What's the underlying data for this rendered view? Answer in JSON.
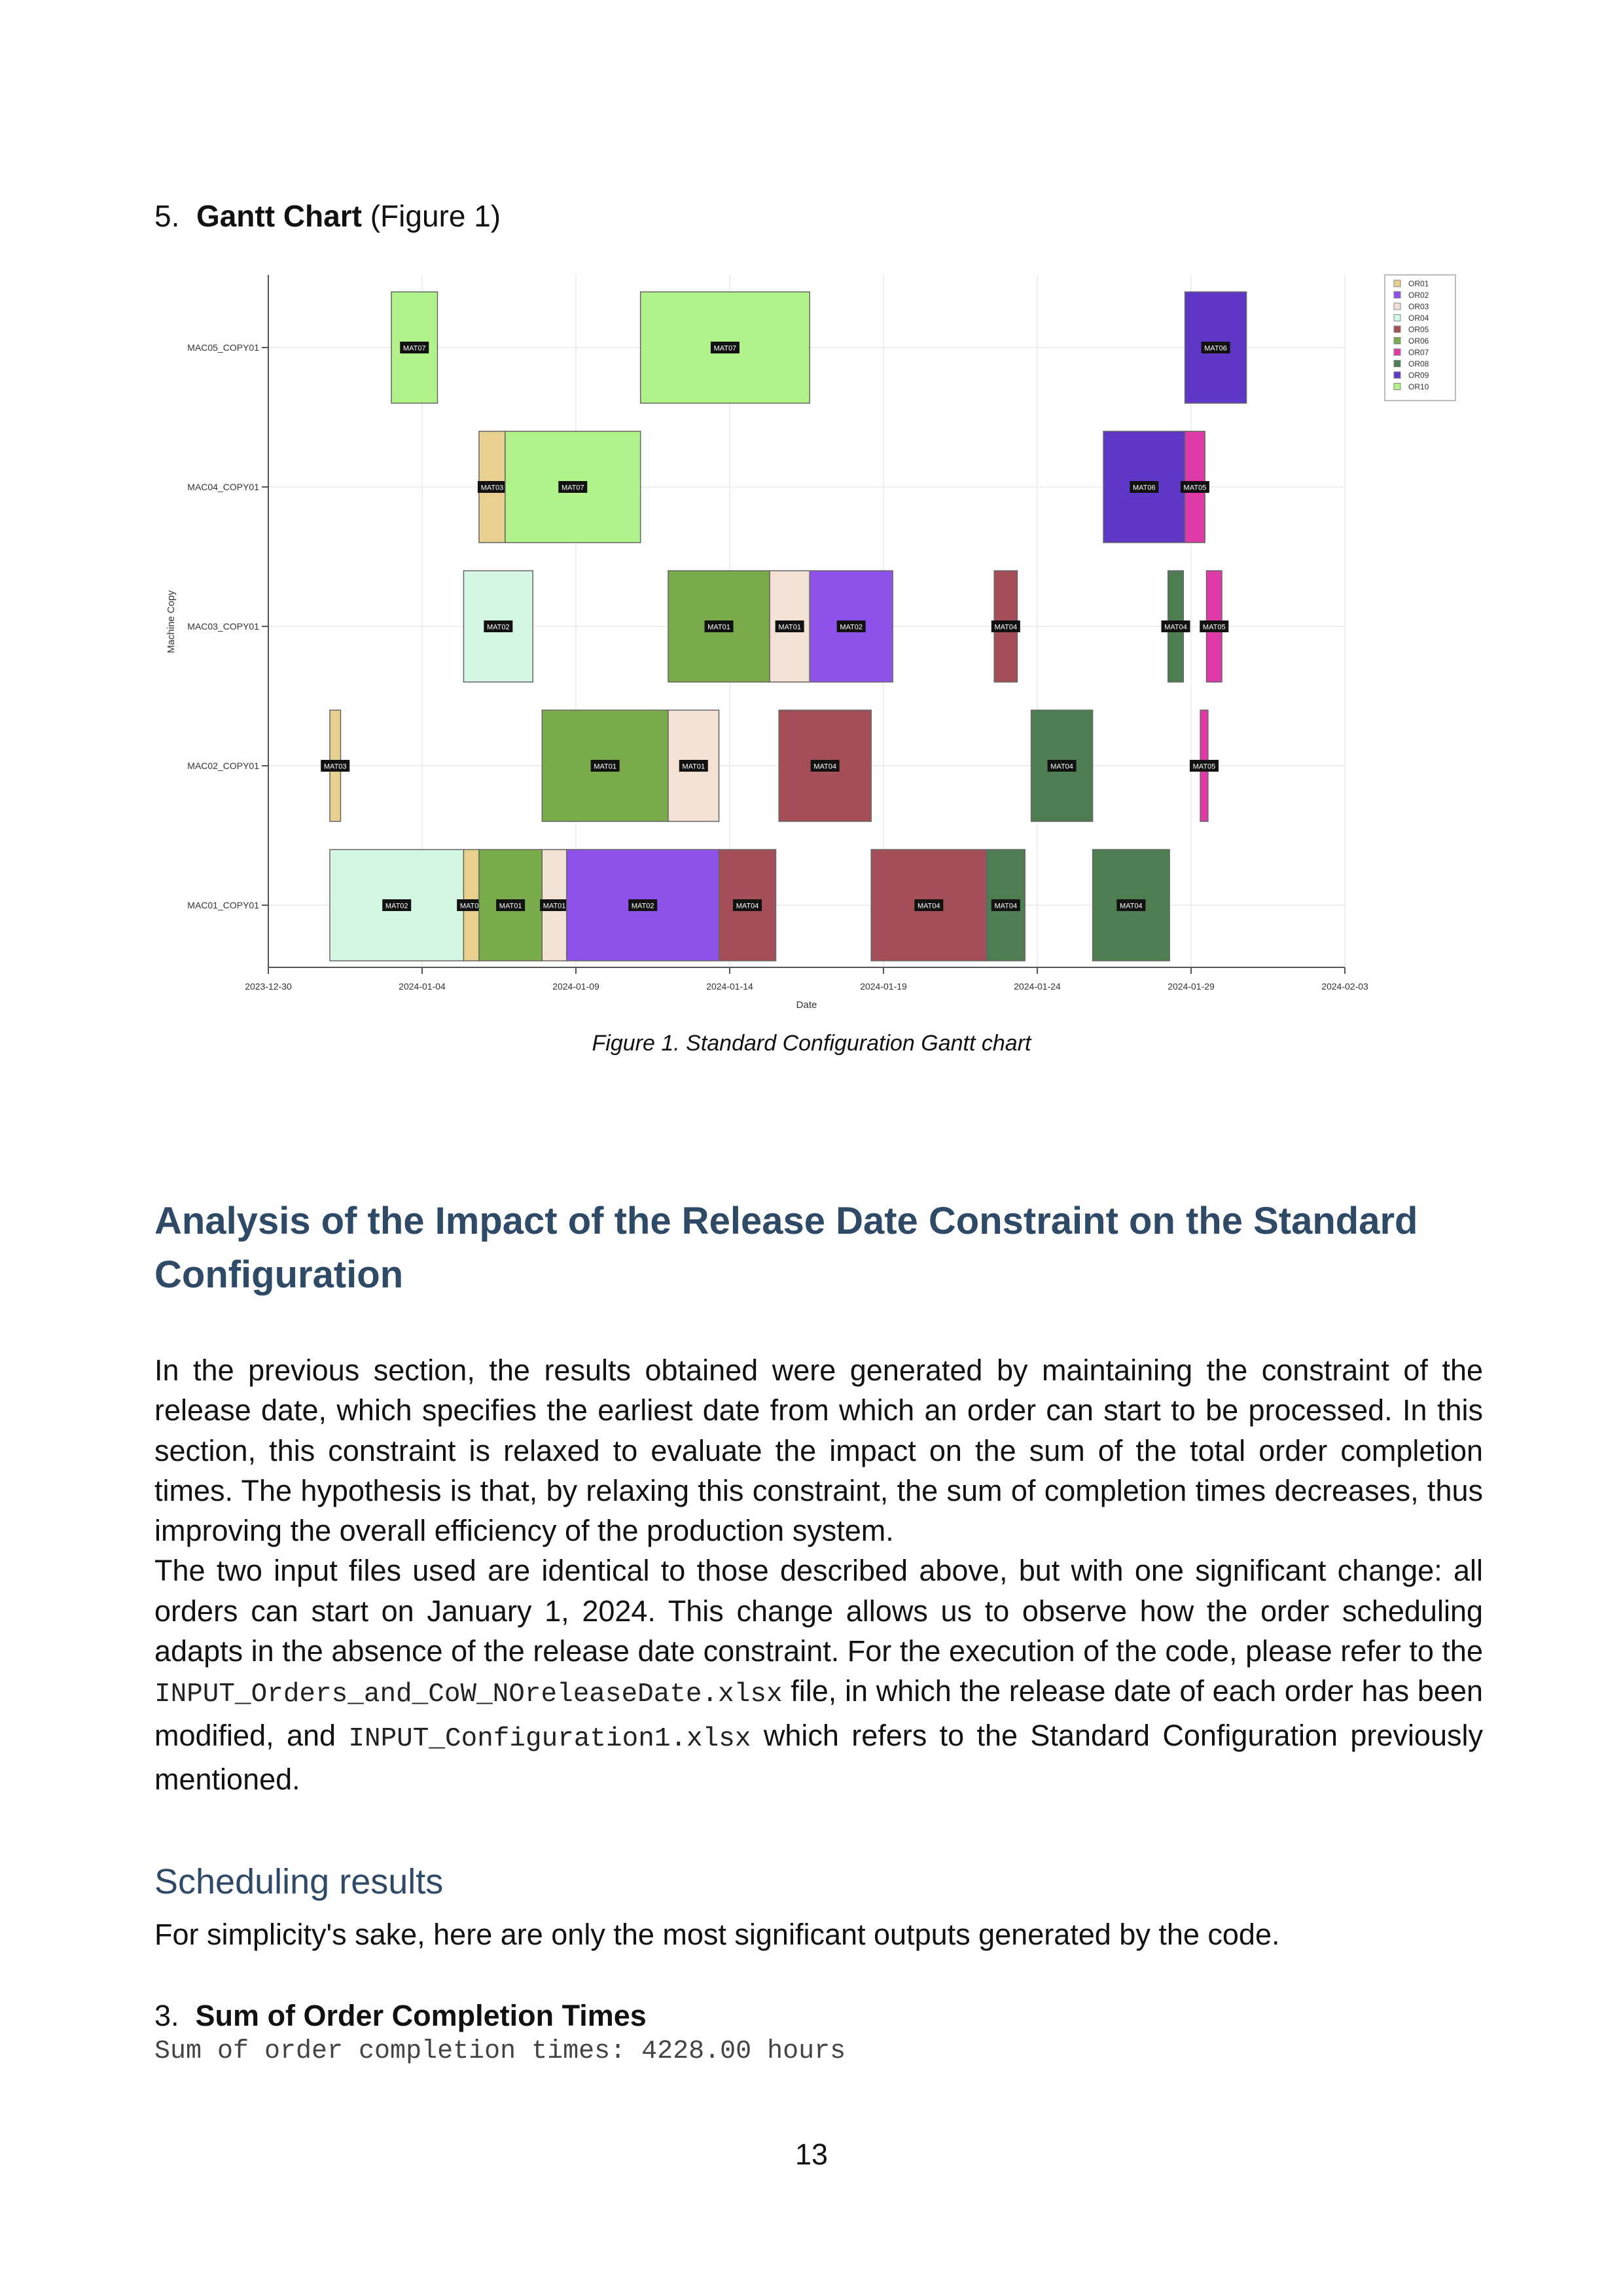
{
  "section5": {
    "number": "5.",
    "title": "Gantt Chart",
    "ref": "(Figure 1)"
  },
  "figure_caption": "Figure 1. Standard Configuration Gantt chart",
  "heading": "Analysis of the Impact of the Release Date Constraint on the Standard Configuration",
  "paragraph1": "In the previous section, the results obtained were generated by maintaining the constraint of the release date, which specifies the earliest date from which an order can start to be processed. In this section, this constraint is relaxed to evaluate the impact on the sum of the total order completion times. The hypothesis is that, by relaxing this constraint, the sum of completion times decreases, thus improving the overall efficiency of the production system.",
  "paragraph2": {
    "part1": "The two input files used are identical to those described above, but with one significant change: all orders can start on January 1, 2024. This change allows us to observe how the order scheduling adapts in the absence of the release date constraint. For the execution of the code, please refer to the ",
    "file1": "INPUT_Orders_and_CoW_NOreleaseDate.xlsx",
    "part2": " file, in which the release date of each order has been modified, and ",
    "file2": "INPUT_Configuration1.xlsx",
    "part3": " which refers to the Standard Configuration previously mentioned."
  },
  "subheading": "Scheduling results",
  "simplicity_text": "For simplicity's sake, here are only the most significant outputs generated by the code.",
  "section3": {
    "number": "3.",
    "title": "Sum of Order Completion Times"
  },
  "code_output": "Sum of order completion times: 4228.00 hours",
  "page_number": "13",
  "chart_data": {
    "type": "gantt",
    "xlabel": "Date",
    "ylabel": "Machine Copy",
    "x_range": [
      "2023-12-30",
      "2024-02-03"
    ],
    "x_ticks": [
      "2023-12-30",
      "2024-01-04",
      "2024-01-09",
      "2024-01-14",
      "2024-01-19",
      "2024-01-24",
      "2024-01-29",
      "2024-02-03"
    ],
    "machines": [
      "MAC01_COPY01",
      "MAC02_COPY01",
      "MAC03_COPY01",
      "MAC04_COPY01",
      "MAC05_COPY01"
    ],
    "legend_position": "top-right",
    "legend": [
      {
        "name": "OR01",
        "color": "#e8d08e"
      },
      {
        "name": "OR02",
        "color": "#8e52ea"
      },
      {
        "name": "OR03",
        "color": "#f3e1d4"
      },
      {
        "name": "OR04",
        "color": "#d4f7e3"
      },
      {
        "name": "OR05",
        "color": "#a44e58"
      },
      {
        "name": "OR06",
        "color": "#7aab4b"
      },
      {
        "name": "OR07",
        "color": "#e03aa8"
      },
      {
        "name": "OR08",
        "color": "#4f7d52"
      },
      {
        "name": "OR09",
        "color": "#6038c8"
      },
      {
        "name": "OR10",
        "color": "#b1f28b"
      }
    ],
    "tasks": [
      {
        "machine": "MAC05_COPY01",
        "start": 4,
        "end": 5.5,
        "label": "MAT07",
        "order": "OR10"
      },
      {
        "machine": "MAC05_COPY01",
        "start": 12.1,
        "end": 17.6,
        "label": "MAT07",
        "order": "OR10"
      },
      {
        "machine": "MAC05_COPY01",
        "start": 29.8,
        "end": 31.8,
        "label": "MAT06",
        "order": "OR09"
      },
      {
        "machine": "MAC04_COPY01",
        "start": 6.85,
        "end": 7.7,
        "label": "MAT03",
        "order": "OR01"
      },
      {
        "machine": "MAC04_COPY01",
        "start": 7.7,
        "end": 12.1,
        "label": "MAT07",
        "order": "OR10"
      },
      {
        "machine": "MAC04_COPY01",
        "start": 27.15,
        "end": 29.8,
        "label": "MAT06",
        "order": "OR09"
      },
      {
        "machine": "MAC04_COPY01",
        "start": 29.8,
        "end": 30.45,
        "label": "MAT05",
        "order": "OR07"
      },
      {
        "machine": "MAC03_COPY01",
        "start": 6.35,
        "end": 8.6,
        "label": "MAT02",
        "order": "OR04"
      },
      {
        "machine": "MAC03_COPY01",
        "start": 13.0,
        "end": 16.3,
        "label": "MAT01",
        "order": "OR06"
      },
      {
        "machine": "MAC03_COPY01",
        "start": 16.3,
        "end": 17.6,
        "label": "MAT01",
        "order": "OR03"
      },
      {
        "machine": "MAC03_COPY01",
        "start": 17.6,
        "end": 20.3,
        "label": "MAT02",
        "order": "OR02"
      },
      {
        "machine": "MAC03_COPY01",
        "start": 23.6,
        "end": 24.35,
        "label": "MAT04",
        "order": "OR05"
      },
      {
        "machine": "MAC03_COPY01",
        "start": 29.25,
        "end": 29.75,
        "label": "MAT04",
        "order": "OR08"
      },
      {
        "machine": "MAC03_COPY01",
        "start": 30.5,
        "end": 31.0,
        "label": "MAT05",
        "order": "OR07"
      },
      {
        "machine": "MAC02_COPY01",
        "start": 2.0,
        "end": 2.35,
        "label": "MAT03",
        "order": "OR01"
      },
      {
        "machine": "MAC02_COPY01",
        "start": 8.9,
        "end": 13.0,
        "label": "MAT01",
        "order": "OR06"
      },
      {
        "machine": "MAC02_COPY01",
        "start": 13.0,
        "end": 14.65,
        "label": "MAT01",
        "order": "OR03"
      },
      {
        "machine": "MAC02_COPY01",
        "start": 16.6,
        "end": 19.6,
        "label": "MAT04",
        "order": "OR05"
      },
      {
        "machine": "MAC02_COPY01",
        "start": 24.8,
        "end": 26.8,
        "label": "MAT04",
        "order": "OR08"
      },
      {
        "machine": "MAC02_COPY01",
        "start": 30.3,
        "end": 30.55,
        "label": "MAT05",
        "order": "OR07"
      },
      {
        "machine": "MAC01_COPY01",
        "start": 2.0,
        "end": 6.35,
        "label": "MAT02",
        "order": "OR04"
      },
      {
        "machine": "MAC01_COPY01",
        "start": 6.35,
        "end": 6.85,
        "label": "MAT03",
        "order": "OR01"
      },
      {
        "machine": "MAC01_COPY01",
        "start": 6.85,
        "end": 8.9,
        "label": "MAT01",
        "order": "OR06"
      },
      {
        "machine": "MAC01_COPY01",
        "start": 8.9,
        "end": 9.7,
        "label": "MAT01",
        "order": "OR03"
      },
      {
        "machine": "MAC01_COPY01",
        "start": 9.7,
        "end": 14.65,
        "label": "MAT02",
        "order": "OR02"
      },
      {
        "machine": "MAC01_COPY01",
        "start": 14.65,
        "end": 16.5,
        "label": "MAT04",
        "order": "OR05"
      },
      {
        "machine": "MAC01_COPY01",
        "start": 19.6,
        "end": 23.35,
        "label": "MAT04",
        "order": "OR05"
      },
      {
        "machine": "MAC01_COPY01",
        "start": 23.35,
        "end": 24.6,
        "label": "MAT04",
        "order": "OR08"
      },
      {
        "machine": "MAC01_COPY01",
        "start": 26.8,
        "end": 29.3,
        "label": "MAT04",
        "order": "OR08"
      }
    ]
  }
}
